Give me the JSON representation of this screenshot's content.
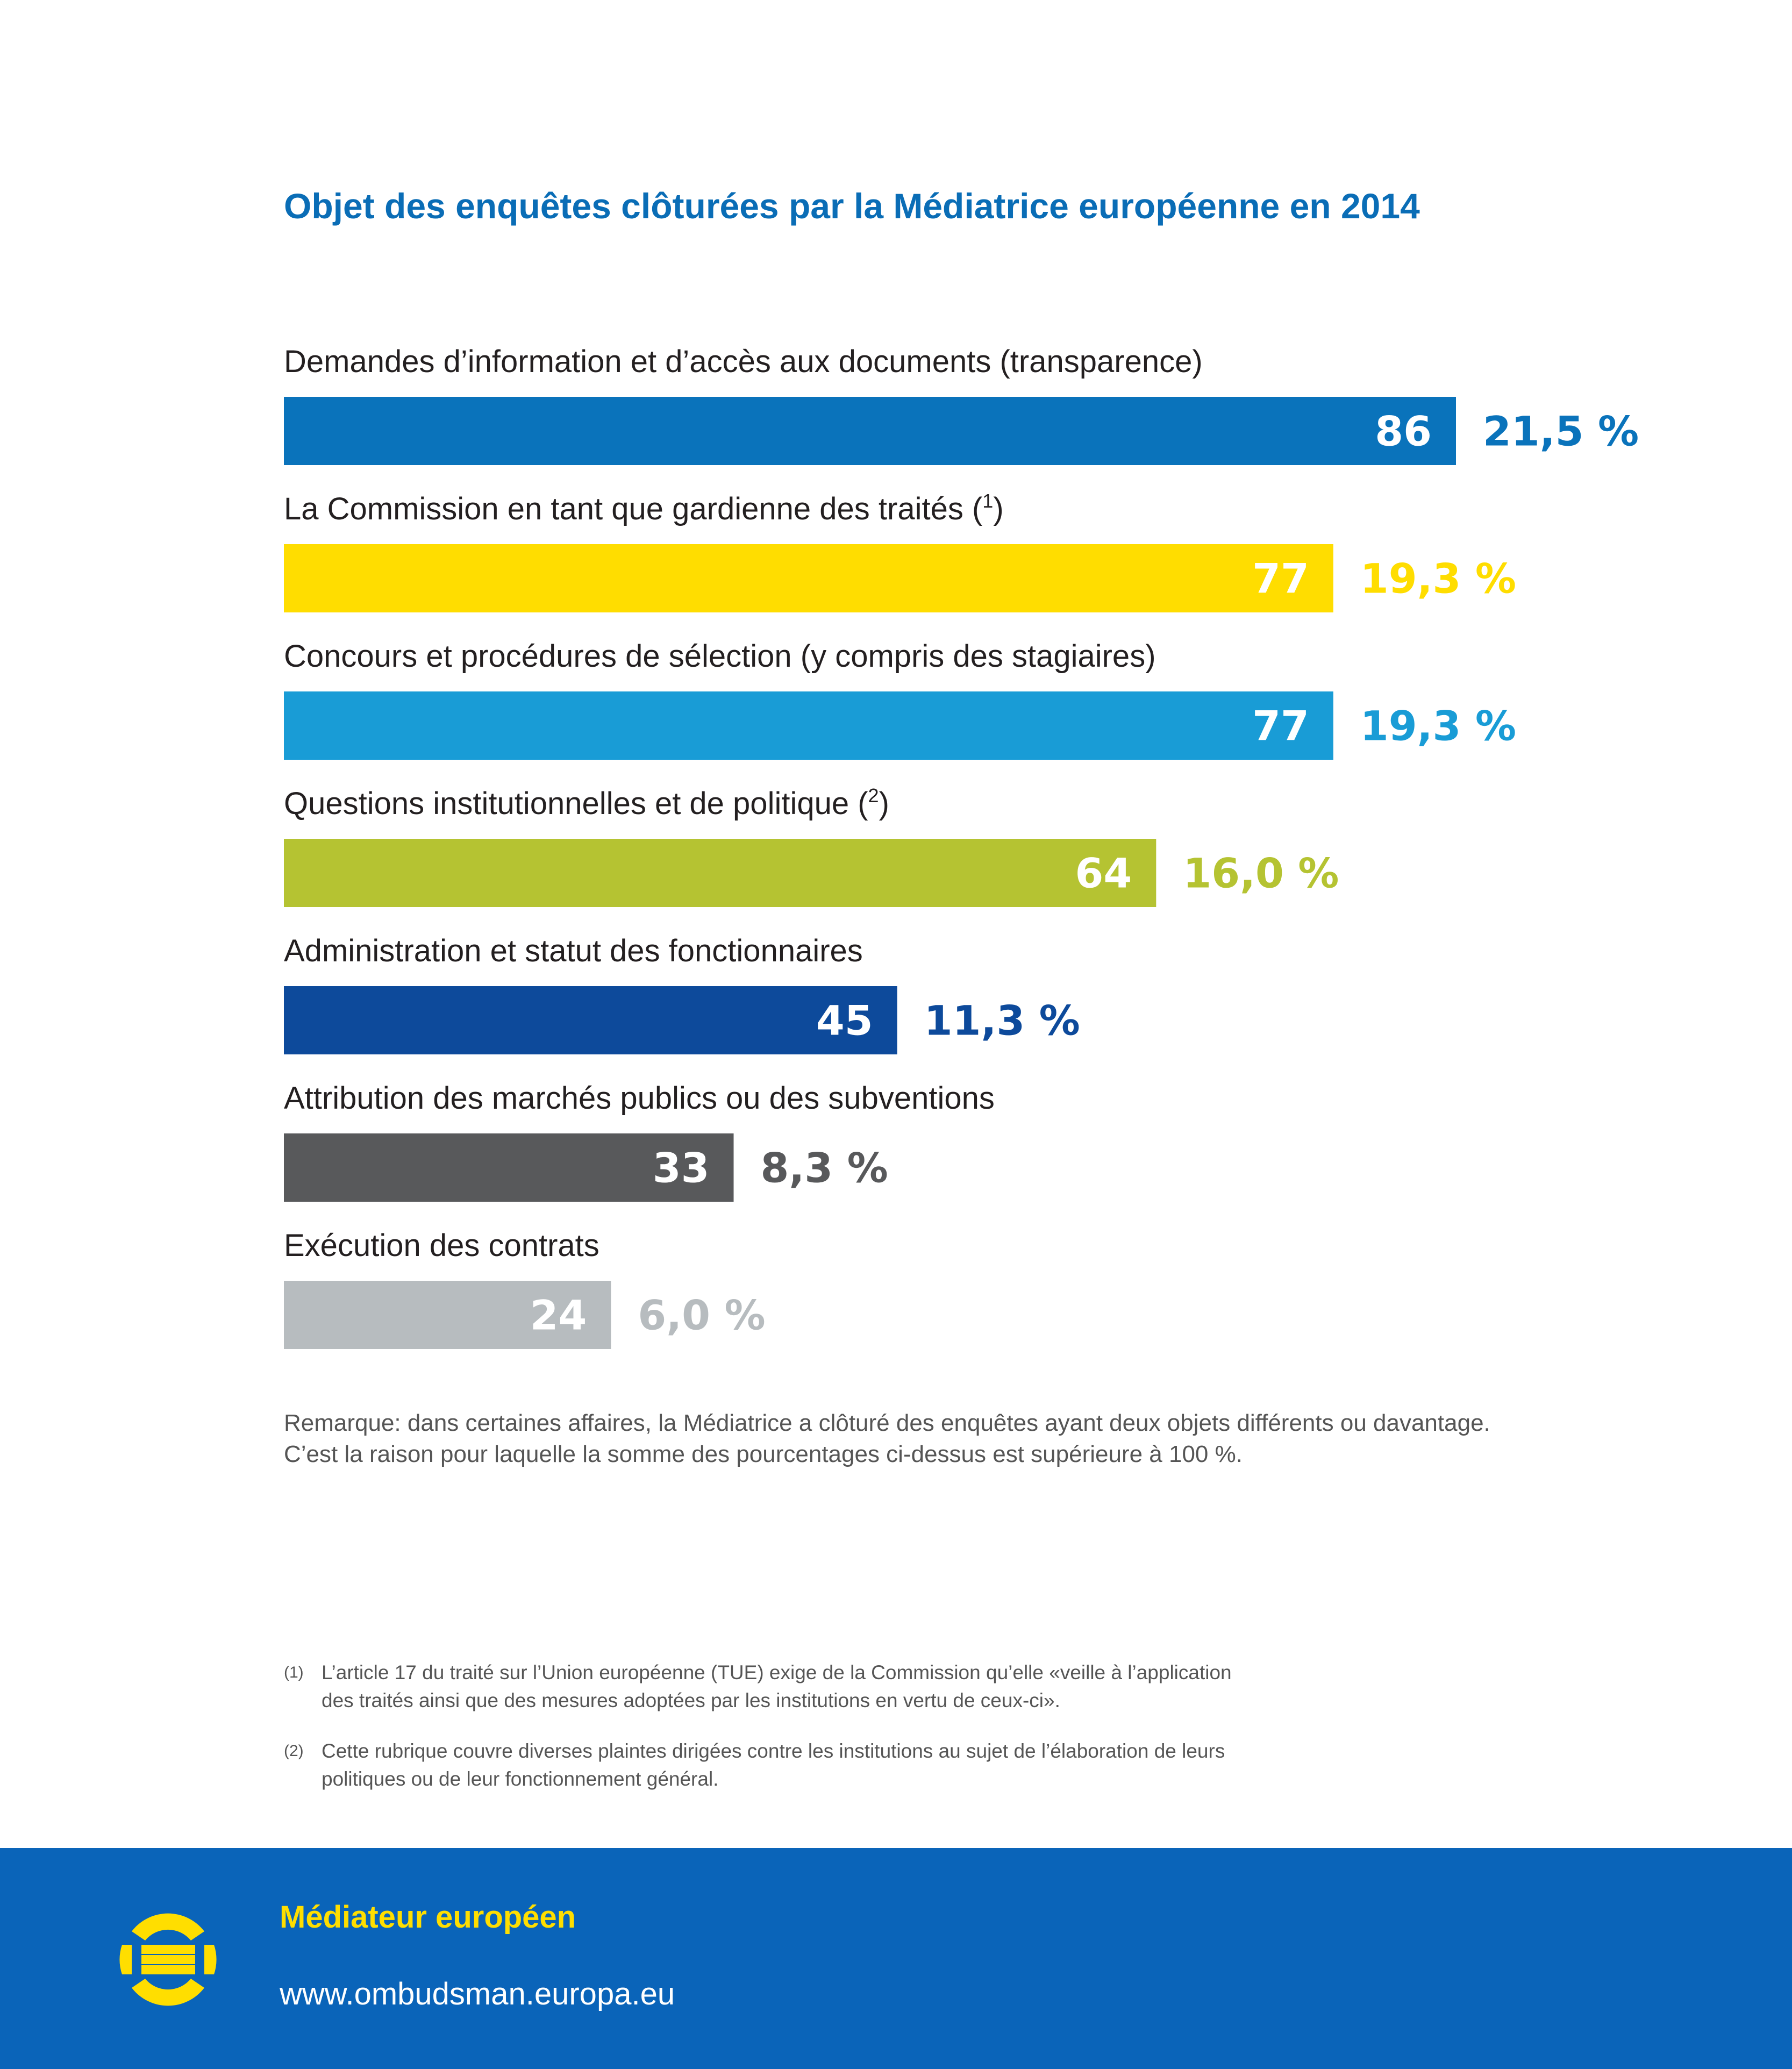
{
  "chart_data": {
    "type": "bar",
    "orientation": "horizontal",
    "title": "Objet des enquêtes clôturées par la Médiatrice européenne en 2014",
    "categories": [
      {
        "label": "Demandes d’information et d’accès aux documents (transparence)",
        "footnote": ""
      },
      {
        "label": "La Commission en tant que gardienne des traités",
        "footnote": "1"
      },
      {
        "label": "Concours et procédures de sélection (y compris des stagiaires)",
        "footnote": ""
      },
      {
        "label": "Questions institutionnelles et de politique",
        "footnote": "2"
      },
      {
        "label": "Administration et statut des fonctionnaires",
        "footnote": ""
      },
      {
        "label": "Attribution des marchés publics ou des subventions",
        "footnote": ""
      },
      {
        "label": "Exécution des contrats",
        "footnote": ""
      }
    ],
    "values": [
      86,
      77,
      77,
      64,
      45,
      33,
      24
    ],
    "percentages": [
      "21,5 %",
      "19,3 %",
      "19,3 %",
      "16,0 %",
      "11,3 %",
      "8,3 %",
      "6,0 %"
    ],
    "colors": [
      "#0a73bb",
      "#ffdd00",
      "#199cd6",
      "#b5c332",
      "#0d4a9b",
      "#58595b",
      "#b7bcbf"
    ],
    "xlim": [
      0,
      86
    ],
    "grid": false,
    "legend": "none"
  },
  "remark": {
    "line1": "Remarque: dans certaines affaires, la Médiatrice a clôturé des enquêtes ayant deux objets différents ou davantage.",
    "line2": "C’est la raison pour laquelle la somme des pourcentages ci-dessus est supérieure à 100 %."
  },
  "footnotes": [
    {
      "mark": "(1)",
      "line1": "L’article 17 du traité sur l’Union européenne (TUE) exige de la Commission qu’elle «veille à l’application",
      "line2": "des traités ainsi que des mesures adoptées par les institutions en vertu de ceux-ci»."
    },
    {
      "mark": "(2)",
      "line1": "Cette rubrique couvre diverses plaintes dirigées contre les institutions au sujet de l’élaboration de leurs",
      "line2": "politiques ou de leur fonctionnement général."
    }
  ],
  "footer": {
    "org_name": "Médiateur européen",
    "website": "www.ombudsman.europa.eu",
    "logo_icon": "european-ombudsman-logo-icon",
    "background_color": "#0a64b9",
    "accent_color": "#ffde00"
  }
}
